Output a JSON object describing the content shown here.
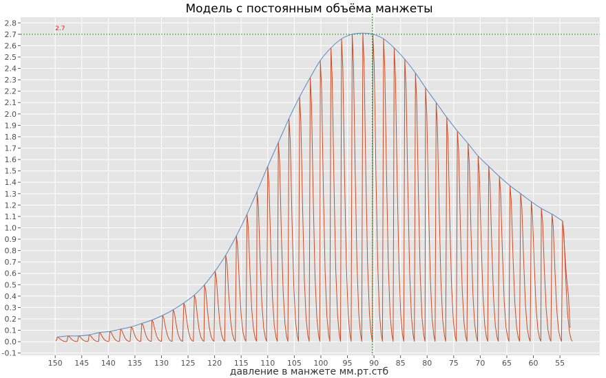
{
  "chart_data": {
    "type": "line",
    "title": "Модель с постоянным объёма манжеты",
    "xlabel": "давление в манжете мм.рт.стб",
    "ylabel": "",
    "x_reversed": true,
    "xlim": [
      156.5,
      47.5
    ],
    "ylim": [
      -0.12,
      2.85
    ],
    "xticks": [
      150,
      145,
      140,
      135,
      130,
      125,
      120,
      115,
      110,
      105,
      100,
      95,
      90,
      85,
      80,
      75,
      70,
      65,
      60,
      55
    ],
    "yticks": [
      -0.1,
      0.0,
      0.1,
      0.2,
      0.3,
      0.4,
      0.5,
      0.6,
      0.7,
      0.8,
      0.9,
      1.0,
      1.1,
      1.2,
      1.3,
      1.4,
      1.5,
      1.6,
      1.7,
      1.8,
      1.9,
      2.0,
      2.1,
      2.2,
      2.3,
      2.4,
      2.5,
      2.6,
      2.7,
      2.8
    ],
    "ytick_labels": [
      "-0.1",
      "0.0",
      "0.1",
      "0.2",
      "0.3",
      "0.4",
      "0.5",
      "0.6",
      "0.7",
      "0.8",
      "0.9",
      "1.0",
      "1.1",
      "1.2",
      "1.3",
      "1.4",
      "1.5",
      "1.6",
      "1.7",
      "1.8",
      "1.9",
      "2.0",
      "2.1",
      "2.2",
      "2.3",
      "2.4",
      "2.5",
      "2.6",
      "2.7",
      "2.8"
    ],
    "grid": true,
    "legend": "none",
    "peak_marker": {
      "x": 90.3,
      "y": 2.7,
      "label": "2.7"
    },
    "oscillation_peaks": {
      "x": [
        149.6,
        147.6,
        145.6,
        143.6,
        141.7,
        139.7,
        137.7,
        135.7,
        133.7,
        131.8,
        129.8,
        127.8,
        125.8,
        123.8,
        121.9,
        119.9,
        117.9,
        115.9,
        113.9,
        112.0,
        110.0,
        108.0,
        106.0,
        104.0,
        102.0,
        100.1,
        98.1,
        96.1,
        94.1,
        92.1,
        90.2,
        88.2,
        86.2,
        84.2,
        82.2,
        80.3,
        78.3,
        76.3,
        74.3,
        72.3,
        70.4,
        68.4,
        66.4,
        64.4,
        62.4,
        60.4,
        58.5,
        56.5,
        54.5
      ],
      "y": [
        0.04,
        0.05,
        0.05,
        0.06,
        0.08,
        0.09,
        0.11,
        0.13,
        0.16,
        0.19,
        0.23,
        0.28,
        0.34,
        0.41,
        0.5,
        0.62,
        0.76,
        0.93,
        1.12,
        1.32,
        1.54,
        1.75,
        1.96,
        2.15,
        2.32,
        2.47,
        2.58,
        2.66,
        2.7,
        2.71,
        2.7,
        2.66,
        2.58,
        2.48,
        2.36,
        2.23,
        2.1,
        1.97,
        1.85,
        1.74,
        1.63,
        1.54,
        1.45,
        1.37,
        1.3,
        1.23,
        1.17,
        1.12,
        1.06
      ]
    },
    "series": [
      {
        "role": "envelope",
        "color": "#5a87bd"
      },
      {
        "role": "oscillations",
        "color": "#cc4a25"
      }
    ],
    "marker_color_h": "#2e8b2e",
    "marker_color_v": "#1e7a1e",
    "label_color": "#e8231a",
    "bg_color": "#e5e5e5",
    "grid_color": "#ffffff"
  }
}
